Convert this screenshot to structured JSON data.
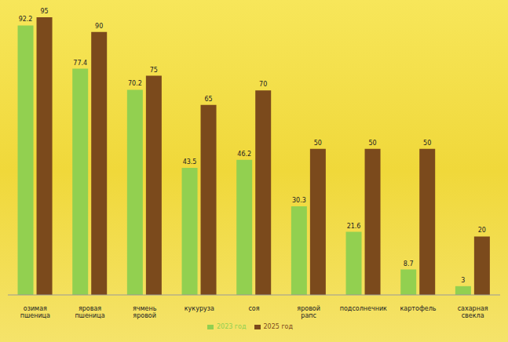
{
  "chart_data": {
    "type": "bar",
    "categories": [
      "озимая пшеница",
      "яровая пшеница",
      "ячмень яровой",
      "кукуруза",
      "соя",
      "яровой рапс",
      "подсолнечник",
      "картофель",
      "сахарная свекла"
    ],
    "series": [
      {
        "name": "2023 год",
        "color": "#92d050",
        "values": [
          92.2,
          77.4,
          70.2,
          43.5,
          46.2,
          30.3,
          21.6,
          8.7,
          3
        ]
      },
      {
        "name": "2025 год",
        "color": "#7b4a1c",
        "values": [
          95,
          90,
          75,
          65,
          70,
          50,
          50,
          50,
          20
        ]
      }
    ],
    "data_labels": true,
    "tick_labels": "x",
    "legend": "bottom",
    "grid": false
  }
}
